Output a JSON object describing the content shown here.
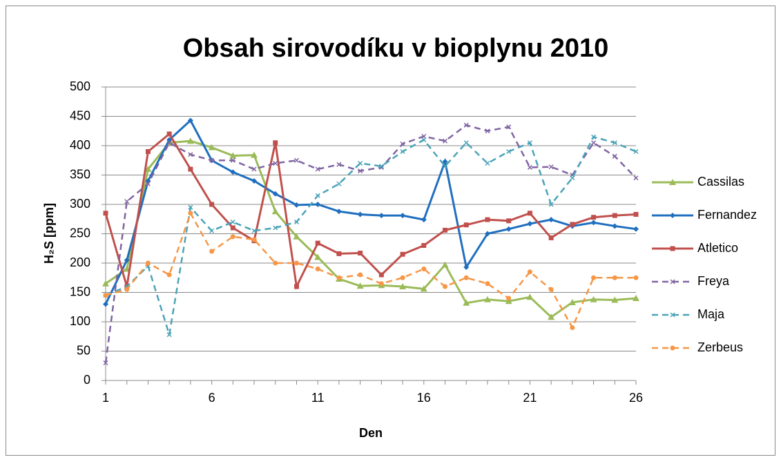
{
  "chart_data": {
    "type": "line",
    "title": "Obsah sirovodíku v bioplynu  2010",
    "x_label": "Den",
    "y_label": "H₂S [ppm]",
    "x": [
      1,
      2,
      3,
      4,
      5,
      6,
      7,
      8,
      9,
      10,
      11,
      12,
      13,
      14,
      15,
      16,
      17,
      18,
      19,
      20,
      21,
      22,
      23,
      24,
      25,
      26
    ],
    "xlim": [
      1,
      26
    ],
    "xticks": [
      1,
      6,
      11,
      16,
      21,
      26
    ],
    "ylim": [
      0,
      500
    ],
    "yticks": [
      0,
      50,
      100,
      150,
      200,
      250,
      300,
      350,
      400,
      450,
      500
    ],
    "grid": true,
    "legend": "right",
    "series": [
      {
        "name": "Cassilas",
        "color": "#9bbb59",
        "marker": "triangle",
        "dashed": false,
        "values": [
          165,
          190,
          360,
          405,
          408,
          397,
          383,
          384,
          288,
          245,
          210,
          173,
          161,
          162,
          160,
          156,
          197,
          132,
          138,
          135,
          142,
          108,
          133,
          138,
          137,
          140
        ]
      },
      {
        "name": "Fernandez",
        "color": "#1f6fbf",
        "marker": "diamond",
        "dashed": false,
        "values": [
          130,
          205,
          340,
          410,
          443,
          375,
          355,
          340,
          318,
          299,
          300,
          288,
          283,
          281,
          281,
          274,
          373,
          193,
          250,
          258,
          267,
          274,
          263,
          269,
          263,
          258
        ]
      },
      {
        "name": "Atletico",
        "color": "#c0504d",
        "marker": "square",
        "dashed": false,
        "values": [
          285,
          160,
          390,
          420,
          360,
          300,
          260,
          238,
          405,
          160,
          234,
          216,
          217,
          180,
          215,
          230,
          256,
          265,
          274,
          272,
          285,
          243,
          266,
          278,
          281,
          283
        ]
      },
      {
        "name": "Freya",
        "color": "#8064a2",
        "marker": "x",
        "dashed": true,
        "values": [
          30,
          305,
          335,
          405,
          385,
          375,
          375,
          360,
          370,
          375,
          360,
          368,
          357,
          363,
          403,
          416,
          408,
          435,
          425,
          432,
          363,
          364,
          350,
          405,
          382,
          345
        ]
      },
      {
        "name": "Maja",
        "color": "#4aa3b8",
        "marker": "x",
        "dashed": true,
        "values": [
          145,
          160,
          195,
          78,
          295,
          255,
          270,
          255,
          260,
          270,
          315,
          335,
          370,
          365,
          390,
          410,
          365,
          405,
          370,
          390,
          405,
          300,
          345,
          415,
          405,
          390
        ]
      },
      {
        "name": "Zerbeus",
        "color": "#f79646",
        "marker": "circle",
        "dashed": true,
        "values": [
          145,
          155,
          200,
          180,
          285,
          220,
          245,
          240,
          200,
          200,
          190,
          175,
          180,
          165,
          175,
          190,
          160,
          175,
          165,
          140,
          185,
          155,
          90,
          175,
          175,
          175
        ]
      }
    ]
  }
}
